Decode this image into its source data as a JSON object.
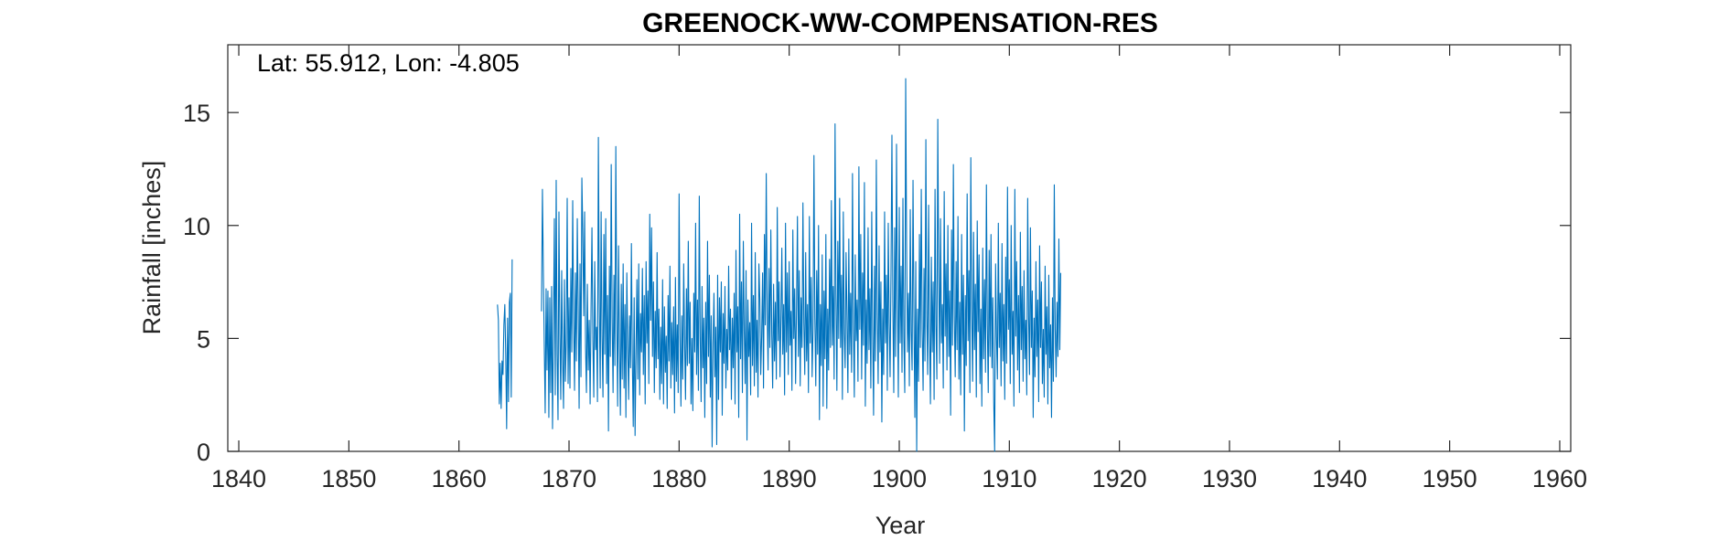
{
  "chart_data": {
    "type": "line",
    "title": "GREENOCK-WW-COMPENSATION-RES",
    "annotation": "Lat: 55.912, Lon: -4.805",
    "xlabel": "Year",
    "ylabel": "Rainfall [inches]",
    "xlim": [
      1839,
      1961
    ],
    "ylim": [
      0,
      18
    ],
    "xticks": [
      1840,
      1850,
      1860,
      1870,
      1880,
      1890,
      1900,
      1910,
      1920,
      1930,
      1940,
      1950,
      1960
    ],
    "yticks": [
      0,
      5,
      10,
      15
    ],
    "grid": false,
    "series": [
      {
        "color": "#0072BD",
        "segments": [
          {
            "start_year": 1863.5,
            "values": [
              6.5,
              5.8,
              2.1,
              3.9,
              1.9,
              4.0,
              3.4,
              5.6,
              6.5,
              4.3,
              1.0,
              5.9,
              2.2,
              6.6,
              7.0,
              2.4,
              8.5
            ]
          },
          {
            "start_year": 1867.5,
            "values": [
              6.2,
              11.6,
              8.0,
              4.7,
              1.7,
              7.2,
              3.6,
              7.1,
              1.5,
              6.8,
              2.6,
              7.3,
              1.0,
              5.4,
              10.3,
              2.5,
              12.0,
              4.3,
              1.4,
              10.6,
              5.2,
              2.3,
              8.0,
              4.1,
              1.9,
              7.6,
              3.1,
              4.9,
              11.2,
              3.0,
              6.8,
              2.8,
              8.1,
              4.4,
              11.1,
              5.9,
              2.7,
              7.9,
              4.0,
              10.3,
              6.4,
              1.9,
              8.3,
              3.3,
              12.1,
              9.7,
              6.0,
              10.6,
              4.6,
              2.6,
              7.4,
              3.6,
              5.8,
              2.1,
              6.3,
              9.9,
              4.9,
              2.4,
              8.4,
              4.5,
              5.5,
              2.2,
              13.9,
              6.6,
              2.8,
              10.6,
              5.1,
              2.4,
              9.6,
              4.3,
              10.3,
              3.0,
              6.9,
              0.9,
              8.2,
              4.2,
              12.7,
              5.9,
              2.6,
              7.8,
              3.8,
              13.5,
              6.1,
              2.0,
              9.1,
              4.6,
              1.6,
              7.4,
              3.2,
              8.3,
              2.8,
              6.5,
              1.5,
              7.9,
              4.7,
              2.3,
              6.0,
              3.7,
              9.2,
              4.1,
              1.1,
              6.8,
              0.7,
              4.3,
              7.6,
              3.2,
              8.3,
              2.5,
              6.1,
              4.4,
              8.1,
              3.4,
              6.9,
              2.1,
              8.4,
              4.8,
              7.1,
              3.0,
              10.5,
              5.8,
              9.9,
              4.2,
              7.5,
              2.6,
              6.2,
              3.7,
              8.8,
              4.1,
              6.3,
              2.3,
              5.5,
              3.0,
              7.6,
              2.1,
              6.4,
              3.5,
              5.1,
              1.9,
              6.9,
              4.0,
              8.2,
              2.8,
              5.7,
              3.4,
              6.4,
              1.7,
              7.7,
              3.1,
              5.6,
              2.6,
              11.4,
              5.2,
              2.0,
              6.0,
              3.2,
              8.3,
              4.8,
              2.3,
              7.2,
              3.8,
              9.3,
              3.9,
              6.6,
              2.1,
              5.0,
              1.8,
              7.0,
              4.4,
              10.1,
              3.4,
              6.7,
              2.7,
              11.3,
              5.1,
              2.2,
              7.3,
              3.7,
              5.9,
              1.5,
              6.6,
              3.0,
              9.3,
              4.2,
              7.8,
              2.4,
              6.0,
              0.2,
              4.8,
              7.0,
              3.3,
              5.5,
              0.3,
              7.8,
              2.3,
              6.8,
              4.4,
              7.5,
              1.6,
              6.1,
              3.9,
              7.3,
              2.8,
              5.4,
              3.6,
              8.2,
              4.5,
              6.3,
              2.3,
              5.9,
              3.7,
              7.0,
              2.1,
              8.9,
              4.4,
              6.4,
              1.5,
              10.5,
              4.1,
              7.5,
              2.6,
              9.3,
              5.3,
              3.0,
              8.0,
              0.5,
              6.7,
              4.2,
              5.7,
              2.5,
              10.1,
              3.8,
              6.9,
              2.9,
              8.8,
              3.5,
              5.8,
              2.4,
              8.3,
              6.7,
              3.4,
              5.1,
              7.9,
              2.8,
              9.6,
              5.6,
              12.3,
              6.2,
              3.6,
              8.1,
              4.6,
              9.8,
              5.2,
              2.8,
              7.4,
              4.0,
              6.6,
              3.2,
              10.8,
              4.9,
              7.5,
              3.3,
              5.9,
              9.0,
              4.3,
              6.5,
              2.5,
              10.1,
              4.4,
              7.9,
              3.4,
              8.4,
              4.7,
              6.2,
              2.7,
              9.8,
              5.0,
              7.2,
              3.0,
              6.3,
              10.4,
              4.2,
              8.0,
              2.9,
              6.8,
              4.6,
              11.0,
              5.7,
              3.4,
              8.8,
              4.0,
              6.5,
              2.6,
              10.4,
              4.8,
              7.7,
              3.3,
              5.4,
              13.1,
              5.9,
              2.9,
              8.0,
              4.3,
              10.0,
              1.4,
              6.5,
              3.8,
              8.7,
              2.0,
              7.1,
              4.1,
              9.6,
              1.9,
              6.3,
              3.6,
              8.5,
              4.6,
              11.1,
              4.7,
              7.3,
              3.2,
              14.5,
              6.9,
              2.7,
              9.3,
              5.0,
              11.2,
              4.6,
              7.8,
              2.3,
              10.6,
              5.2,
              3.7,
              8.8,
              6.0,
              2.6,
              9.4,
              4.3,
              7.0,
              3.5,
              12.3,
              5.6,
              2.4,
              8.7,
              4.9,
              6.7,
              3.1,
              12.6,
              5.4,
              9.6,
              3.2,
              7.9,
              4.7,
              11.9,
              2.0,
              6.7,
              3.9,
              9.9,
              4.5,
              7.2,
              2.8,
              10.6,
              5.3,
              1.6,
              8.2,
              4.0,
              12.9,
              6.1,
              3.0,
              9.1,
              4.4,
              7.5,
              1.3,
              6.3,
              3.4,
              10.6,
              4.8,
              7.8,
              2.7,
              10.1,
              5.7,
              3.3,
              8.0,
              14.0,
              6.6,
              2.6,
              9.9,
              4.2,
              13.6,
              6.9,
              2.4,
              10.8,
              4.8,
              8.2,
              3.5,
              11.2,
              5.0,
              2.6,
              16.5,
              9.2,
              4.4,
              7.0,
              2.9,
              10.7,
              5.3,
              3.6,
              12.0,
              6.1,
              1.5,
              8.4,
              0.0,
              6.3,
              3.1,
              9.6,
              4.6,
              11.6,
              5.4,
              2.7,
              8.1,
              4.0,
              13.8,
              6.0,
              3.4,
              10.9,
              5.2,
              2.1,
              8.6,
              4.4,
              7.5,
              2.3,
              11.6,
              5.6,
              3.2,
              14.7,
              7.9,
              3.9,
              10.3,
              4.8,
              6.5,
              2.8,
              11.5,
              5.1,
              8.3,
              3.6,
              10.0,
              4.2,
              7.1,
              1.6,
              9.8,
              4.7,
              12.7,
              6.0,
              3.3,
              8.4,
              4.5,
              10.4,
              3.2,
              6.6,
              2.5,
              9.6,
              4.3,
              7.8,
              0.9,
              6.9,
              3.8,
              11.4,
              4.9,
              8.0,
              2.6,
              13.0,
              6.2,
              3.1,
              9.7,
              4.5,
              7.4,
              2.4,
              10.2,
              5.3,
              8.7,
              3.0,
              6.3,
              2.0,
              9.0,
              4.1,
              7.6,
              3.5,
              11.8,
              5.6,
              2.6,
              8.9,
              4.2,
              9.6,
              3.7,
              6.8,
              2.2,
              0.0,
              8.3,
              5.1,
              3.2,
              10.1,
              4.6,
              7.0,
              2.9,
              9.2,
              4.0,
              6.5,
              2.3,
              8.6,
              3.9,
              11.7,
              5.4,
              7.6,
              3.0,
              10.0,
              4.3,
              6.2,
              2.0,
              11.6,
              5.1,
              8.4,
              3.6,
              6.9,
              2.6,
              9.7,
              4.5,
              7.3,
              3.1,
              8.0,
              4.1,
              5.8,
              2.5,
              11.2,
              6.0,
              3.4,
              9.9,
              4.6,
              7.1,
              1.5,
              5.9,
              3.3,
              8.4,
              4.2,
              6.7,
              2.2,
              9.1,
              4.6,
              7.5,
              3.0,
              5.4,
              2.4,
              8.2,
              4.3,
              6.4,
              2.1,
              7.8,
              3.7,
              5.6,
              1.5,
              6.8,
              3.1,
              11.8,
              5.4,
              3.3,
              6.6,
              4.2,
              9.4,
              4.5,
              7.9
            ]
          }
        ]
      }
    ]
  }
}
